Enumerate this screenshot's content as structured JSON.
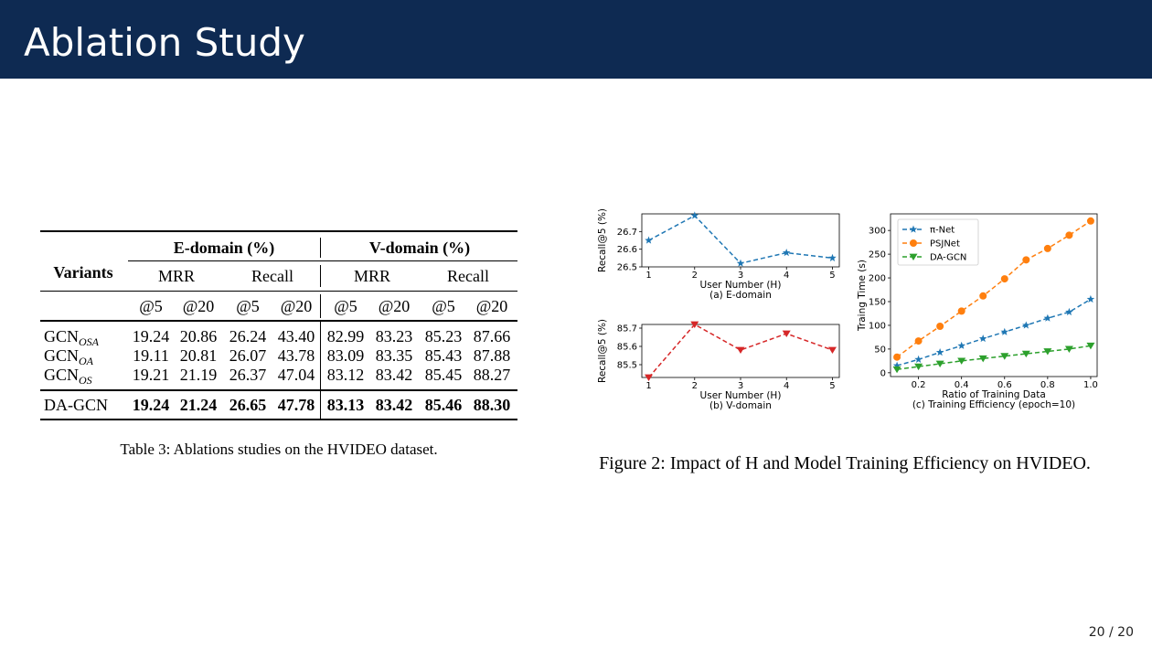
{
  "slide": {
    "title": "Ablation Study",
    "page_number": "20 / 20"
  },
  "table": {
    "variants_header": "Variants",
    "e_domain_header": "E-domain (%)",
    "v_domain_header": "V-domain (%)",
    "metric_headers": [
      "MRR",
      "Recall",
      "MRR",
      "Recall"
    ],
    "k_headers": [
      "@5",
      "@20",
      "@5",
      "@20",
      "@5",
      "@20",
      "@5",
      "@20"
    ],
    "rows": [
      {
        "base": "GCN",
        "sub": "OSA",
        "values": [
          "19.24",
          "20.86",
          "26.24",
          "43.40",
          "82.99",
          "83.23",
          "85.23",
          "87.66"
        ]
      },
      {
        "base": "GCN",
        "sub": "OA",
        "values": [
          "19.11",
          "20.81",
          "26.07",
          "43.78",
          "83.09",
          "83.35",
          "85.43",
          "87.88"
        ]
      },
      {
        "base": "GCN",
        "sub": "OS",
        "values": [
          "19.21",
          "21.19",
          "26.37",
          "47.04",
          "83.12",
          "83.42",
          "85.45",
          "88.27"
        ]
      }
    ],
    "final_row": {
      "name": "DA-GCN",
      "values": [
        "19.24",
        "21.24",
        "26.65",
        "47.78",
        "83.13",
        "83.42",
        "85.46",
        "88.30"
      ]
    },
    "caption": "Table 3: Ablations studies on the HVIDEO dataset."
  },
  "figure": {
    "caption": "Figure 2: Impact of H and Model Training Efficiency on HVIDEO.",
    "colors": {
      "blue": "#1f77b4",
      "orange": "#ff7f0e",
      "green": "#2ca02c",
      "red": "#d62728"
    }
  },
  "chart_data": [
    {
      "type": "line",
      "title": "(a) E-domain",
      "xlabel": "User Number (H)",
      "ylabel": "Recall@5 (%)",
      "x": [
        1,
        2,
        3,
        4,
        5
      ],
      "series": [
        {
          "values": [
            26.65,
            26.79,
            26.52,
            26.58,
            26.55
          ]
        }
      ],
      "ylim": [
        26.5,
        26.8
      ],
      "yticks": [
        "26.5",
        "26.6",
        "26.7"
      ],
      "xticks": [
        "1",
        "2",
        "3",
        "4",
        "5"
      ]
    },
    {
      "type": "line",
      "title": "(b) V-domain",
      "xlabel": "User Number (H)",
      "ylabel": "Recall@5 (%)",
      "x": [
        1,
        2,
        3,
        4,
        5
      ],
      "series": [
        {
          "values": [
            85.43,
            85.72,
            85.58,
            85.67,
            85.58
          ]
        }
      ],
      "ylim": [
        85.43,
        85.72
      ],
      "yticks": [
        "85.5",
        "85.6",
        "85.7"
      ],
      "xticks": [
        "1",
        "2",
        "3",
        "4",
        "5"
      ]
    },
    {
      "type": "line",
      "title": "(c) Training Efficiency (epoch=10)",
      "xlabel": "Ratio of Training Data",
      "ylabel": "Traing Time (s)",
      "x": [
        0.1,
        0.2,
        0.3,
        0.4,
        0.5,
        0.6,
        0.7,
        0.8,
        0.9,
        1.0
      ],
      "series": [
        {
          "name": "π-Net",
          "values": [
            15,
            28,
            43,
            57,
            72,
            86,
            100,
            115,
            128,
            155
          ]
        },
        {
          "name": "PSJNet",
          "values": [
            33,
            67,
            98,
            130,
            162,
            198,
            238,
            262,
            290,
            320
          ]
        },
        {
          "name": "DA-GCN",
          "values": [
            7,
            13,
            19,
            25,
            30,
            35,
            40,
            45,
            50,
            57
          ]
        }
      ],
      "ylim": [
        -8,
        335
      ],
      "xlim": [
        0.07,
        1.03
      ],
      "yticks": [
        "0",
        "50",
        "100",
        "150",
        "200",
        "250",
        "300"
      ],
      "xticks": [
        "0.2",
        "0.4",
        "0.6",
        "0.8",
        "1.0"
      ],
      "legend": "top-left"
    }
  ]
}
